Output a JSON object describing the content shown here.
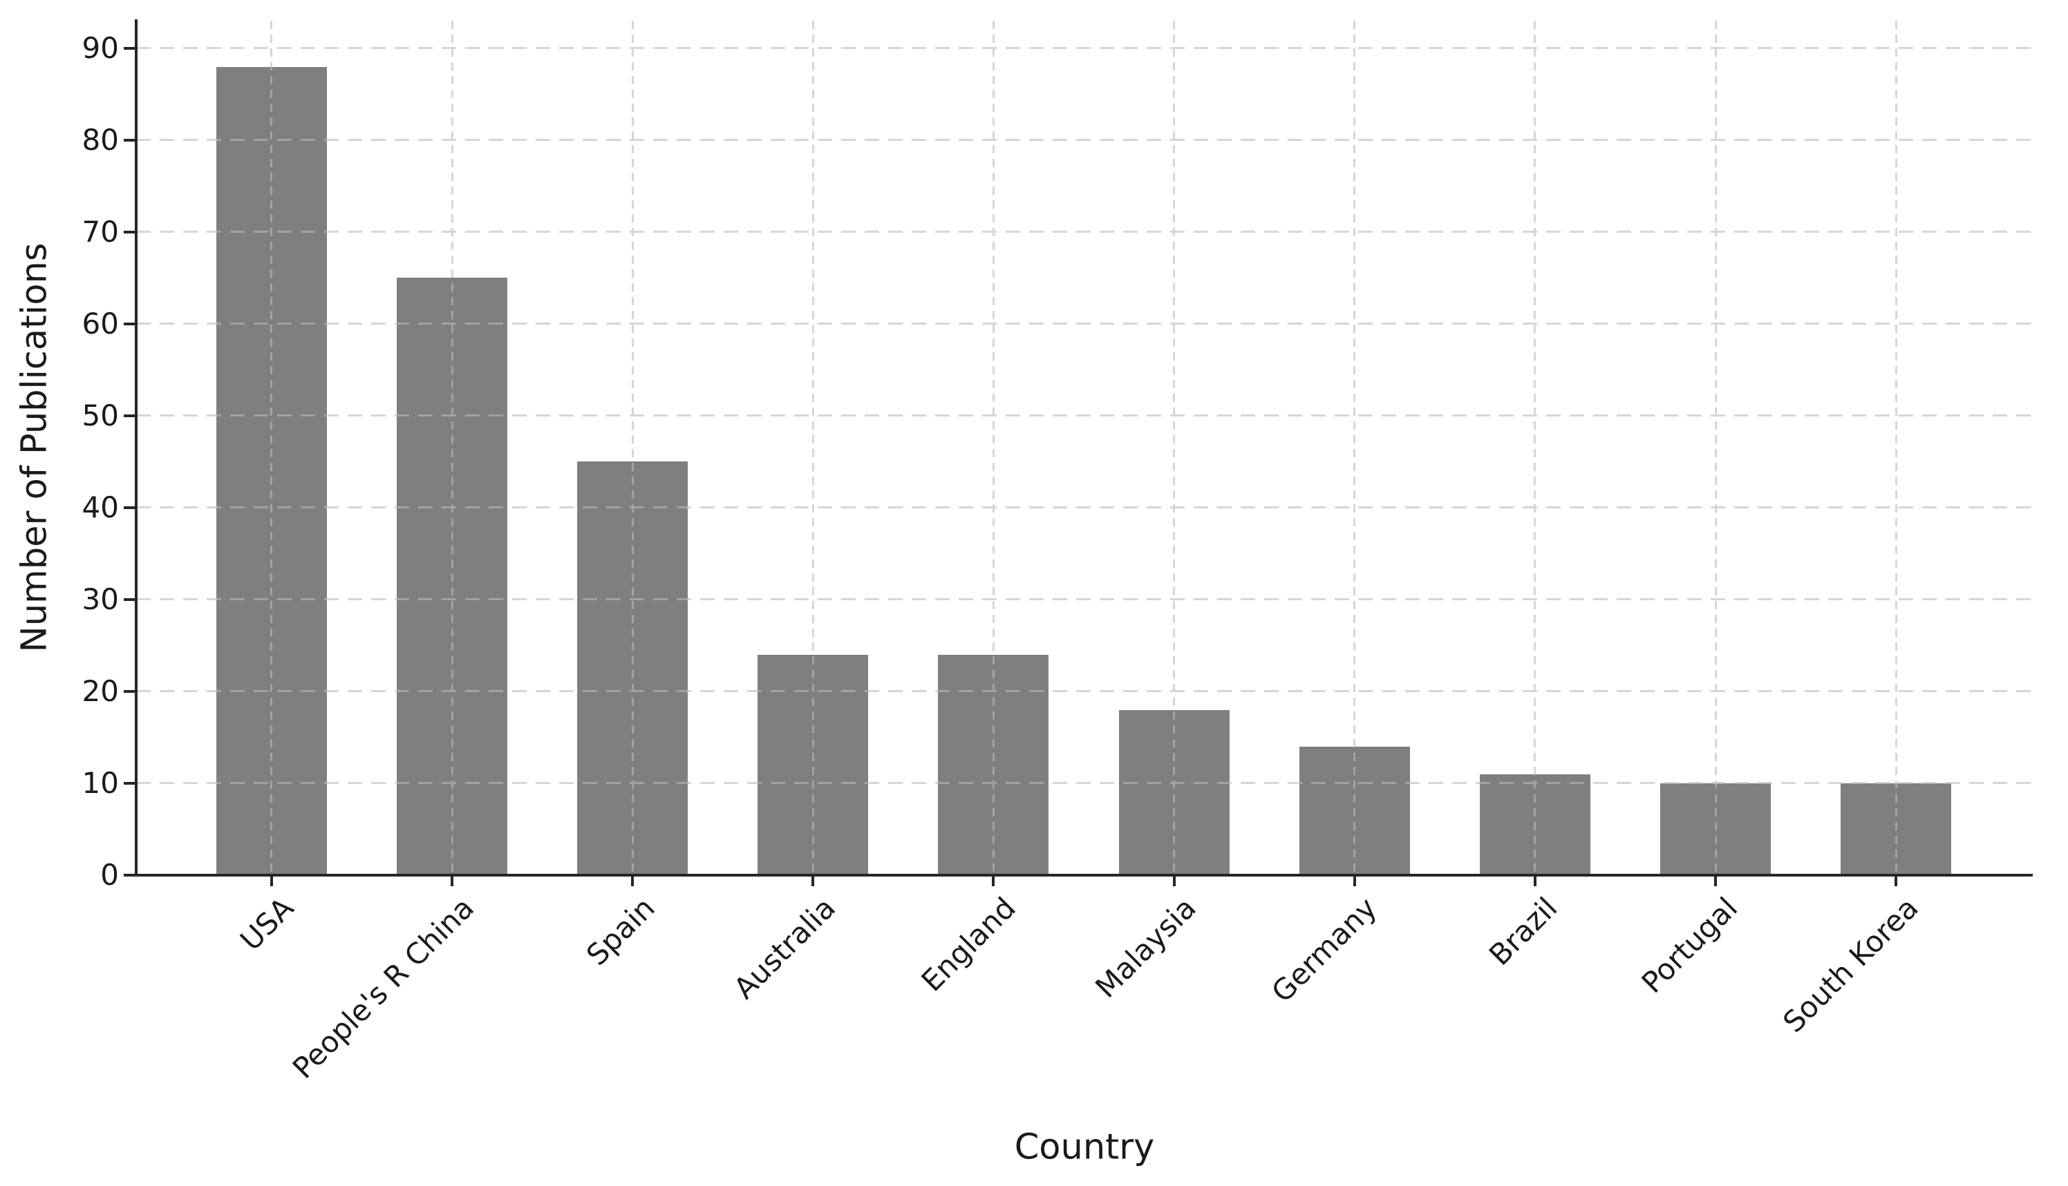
{
  "figure": {
    "kind": "static-plot-screenshot"
  },
  "chart_data": {
    "type": "bar",
    "title": "",
    "categories": [
      "USA",
      "People's R China",
      "Spain",
      "Australia",
      "England",
      "Malaysia",
      "Germany",
      "Brazil",
      "Portugal",
      "South Korea"
    ],
    "values": [
      88,
      65,
      45,
      24,
      24,
      18,
      14,
      11,
      10,
      10
    ],
    "series_name": "Number of Publications",
    "xlabel": "Country",
    "ylabel": "Number of Publications",
    "yticks": [
      0,
      10,
      20,
      30,
      40,
      50,
      60,
      70,
      80,
      90
    ],
    "ylim": [
      0,
      93
    ],
    "xtick_rotation_deg": 45,
    "grid": "both",
    "grid_style": "dashed",
    "legend": false,
    "bar_color": "#7f7f7f",
    "grid_color": "#bbbbbb",
    "axis_color": "#262626",
    "text_color": "#1a1a1a",
    "background_color": "#ffffff"
  }
}
